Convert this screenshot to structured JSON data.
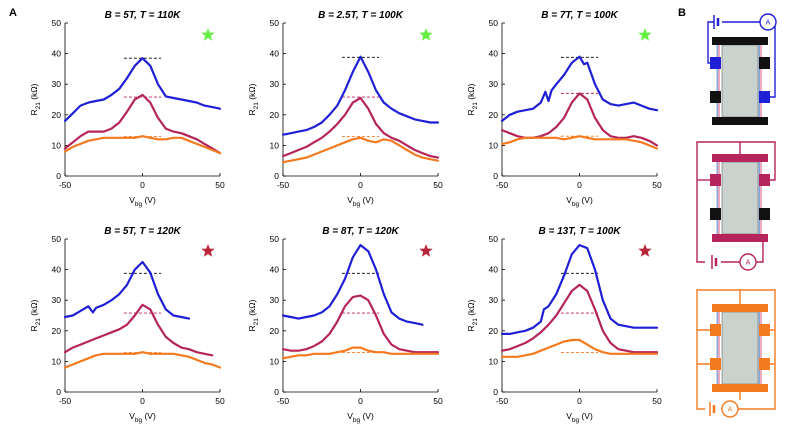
{
  "figure": {
    "panel_a_label": "A",
    "panel_b_label": "B",
    "colors": {
      "blue": "#1f1fd6",
      "magenta": "#b5245a",
      "orange": "#f47a20",
      "green_star": "#66ee44",
      "red_star": "#b8263a",
      "channel": "#c9d2cc",
      "contact_black": "#111111"
    }
  },
  "axis_text": {
    "xlabel": "V",
    "xlabel_sub": "bg",
    "xlabel_unit": " (V)",
    "ylabel": "R",
    "ylabel_sub": "21",
    "ylabel_unit": " (kΩ)"
  },
  "schematic": {
    "ammeter_label": "A",
    "circuits": [
      {
        "name": "top-config",
        "color": "#1f1fd6"
      },
      {
        "name": "middle-config",
        "color": "#b5245a"
      },
      {
        "name": "bottom-config",
        "color": "#f47a20"
      }
    ]
  },
  "chart_data": [
    {
      "type": "line",
      "title": "B = 5T, T = 110K",
      "star": "green",
      "xlim": [
        -50,
        50
      ],
      "ylim": [
        0,
        50
      ],
      "xticks": [
        -50,
        0,
        50
      ],
      "yticks": [
        0,
        10,
        20,
        30,
        40,
        50
      ],
      "series": [
        {
          "name": "blue",
          "x": [
            -50,
            -45,
            -40,
            -35,
            -30,
            -25,
            -20,
            -15,
            -10,
            -5,
            0,
            5,
            10,
            15,
            20,
            25,
            30,
            35,
            40,
            45,
            50
          ],
          "y": [
            18,
            20.5,
            23,
            24,
            24.5,
            25,
            26.5,
            28.5,
            32,
            36,
            38.5,
            36,
            30,
            26,
            25.5,
            25,
            24.5,
            24,
            23,
            22.5,
            22
          ]
        },
        {
          "name": "magenta",
          "x": [
            -50,
            -45,
            -40,
            -35,
            -30,
            -25,
            -20,
            -15,
            -10,
            -5,
            0,
            5,
            10,
            15,
            20,
            25,
            30,
            35,
            40,
            45,
            50
          ],
          "y": [
            9,
            11,
            13,
            14.5,
            14.5,
            14.5,
            15.5,
            17.5,
            21,
            25,
            26.5,
            24,
            19,
            15.5,
            14.5,
            14,
            13,
            12,
            10.5,
            9,
            7.5
          ]
        },
        {
          "name": "orange",
          "x": [
            -50,
            -45,
            -40,
            -35,
            -30,
            -25,
            -20,
            -15,
            -10,
            -5,
            0,
            5,
            10,
            15,
            20,
            25,
            30,
            35,
            40,
            45,
            50
          ],
          "y": [
            8,
            9.5,
            10.5,
            11.5,
            12,
            12.5,
            12.5,
            12.5,
            12.5,
            12.5,
            13,
            12.5,
            12,
            12,
            12.5,
            12.5,
            11.5,
            10.5,
            9.5,
            8.5,
            7.5
          ]
        }
      ],
      "dashed_refs": [
        {
          "name": "blue",
          "y": 38.5,
          "x": [
            -12,
            12
          ]
        },
        {
          "name": "magenta",
          "y": 25.8,
          "x": [
            -12,
            12
          ]
        },
        {
          "name": "orange",
          "y": 12.9,
          "x": [
            -12,
            12
          ]
        }
      ]
    },
    {
      "type": "line",
      "title": "B = 2.5T, T = 100K",
      "star": "green",
      "xlim": [
        -50,
        50
      ],
      "ylim": [
        0,
        50
      ],
      "xticks": [
        -50,
        0,
        50
      ],
      "yticks": [
        0,
        10,
        20,
        30,
        40,
        50
      ],
      "series": [
        {
          "name": "blue",
          "x": [
            -50,
            -45,
            -40,
            -35,
            -30,
            -25,
            -20,
            -15,
            -10,
            -5,
            0,
            5,
            10,
            15,
            20,
            25,
            30,
            35,
            40,
            45,
            50
          ],
          "y": [
            13.5,
            14,
            14.5,
            15,
            16,
            17.5,
            20,
            23,
            28,
            34,
            39,
            34,
            28,
            24,
            22,
            20.5,
            19.5,
            18.5,
            18,
            17.5,
            17.5
          ]
        },
        {
          "name": "magenta",
          "x": [
            -50,
            -45,
            -40,
            -35,
            -30,
            -25,
            -20,
            -15,
            -10,
            -5,
            0,
            5,
            10,
            15,
            20,
            25,
            30,
            35,
            40,
            45,
            50
          ],
          "y": [
            6.5,
            7.5,
            8.5,
            9.5,
            11,
            12.5,
            14.5,
            17,
            20,
            24,
            25.5,
            22,
            17,
            14,
            12.5,
            11.5,
            10,
            8.5,
            7.5,
            6.5,
            6
          ]
        },
        {
          "name": "orange",
          "x": [
            -50,
            -45,
            -40,
            -35,
            -30,
            -25,
            -20,
            -15,
            -10,
            -5,
            0,
            5,
            10,
            15,
            20,
            25,
            30,
            35,
            40,
            45,
            50
          ],
          "y": [
            4.5,
            5,
            5.5,
            6,
            7,
            8,
            9,
            10,
            11,
            12,
            12.5,
            11.5,
            11,
            12,
            11.5,
            10,
            8.5,
            7,
            6,
            5.5,
            5
          ]
        }
      ],
      "dashed_refs": [
        {
          "name": "blue",
          "y": 38.8,
          "x": [
            -12,
            12
          ]
        },
        {
          "name": "magenta",
          "y": 25.8,
          "x": [
            -12,
            12
          ]
        },
        {
          "name": "orange",
          "y": 12.9,
          "x": [
            -12,
            12
          ]
        }
      ]
    },
    {
      "type": "line",
      "title": "B = 7T, T = 100K",
      "star": "green",
      "xlim": [
        -50,
        50
      ],
      "ylim": [
        0,
        50
      ],
      "xticks": [
        -50,
        0,
        50
      ],
      "yticks": [
        0,
        10,
        20,
        30,
        40,
        50
      ],
      "series": [
        {
          "name": "blue",
          "x": [
            -50,
            -45,
            -40,
            -35,
            -30,
            -25,
            -22,
            -20,
            -18,
            -15,
            -10,
            -5,
            0,
            3,
            5,
            10,
            15,
            20,
            25,
            30,
            35,
            40,
            45,
            50
          ],
          "y": [
            18,
            20,
            21,
            21.5,
            22,
            24,
            27.5,
            24.5,
            28,
            30,
            33,
            37,
            39,
            36.5,
            37,
            30,
            25,
            23.5,
            23,
            23.5,
            24,
            23,
            22,
            21.5
          ]
        },
        {
          "name": "magenta",
          "x": [
            -50,
            -45,
            -40,
            -35,
            -30,
            -25,
            -20,
            -15,
            -10,
            -5,
            0,
            5,
            10,
            15,
            20,
            25,
            30,
            35,
            40,
            45,
            50
          ],
          "y": [
            15,
            14,
            13,
            12.5,
            12.5,
            13,
            14,
            16,
            19,
            24,
            27,
            25,
            19,
            15,
            13,
            12.5,
            12.5,
            13,
            12.5,
            11.5,
            10
          ]
        },
        {
          "name": "orange",
          "x": [
            -50,
            -45,
            -40,
            -35,
            -30,
            -25,
            -20,
            -15,
            -10,
            -5,
            0,
            5,
            10,
            15,
            20,
            25,
            30,
            35,
            40,
            45,
            50
          ],
          "y": [
            10.5,
            11,
            12,
            12.5,
            12.5,
            12.5,
            12.5,
            12.5,
            12,
            12.5,
            13,
            12.5,
            12,
            12,
            12,
            12,
            12,
            11.5,
            11,
            10,
            9
          ]
        }
      ],
      "dashed_refs": [
        {
          "name": "blue",
          "y": 38.8,
          "x": [
            -12,
            12
          ]
        },
        {
          "name": "magenta",
          "y": 27,
          "x": [
            -12,
            12
          ]
        },
        {
          "name": "orange",
          "y": 13,
          "x": [
            -12,
            12
          ]
        }
      ]
    },
    {
      "type": "line",
      "title": "B = 5T, T = 120K",
      "star": "red",
      "xlim": [
        -50,
        50
      ],
      "ylim": [
        0,
        50
      ],
      "xticks": [
        -50,
        0,
        50
      ],
      "yticks": [
        0,
        10,
        20,
        30,
        40,
        50
      ],
      "series": [
        {
          "name": "blue",
          "x": [
            -50,
            -45,
            -40,
            -35,
            -32,
            -30,
            -25,
            -20,
            -15,
            -10,
            -5,
            0,
            5,
            10,
            15,
            20,
            25,
            30
          ],
          "y": [
            24.5,
            25,
            26.5,
            28,
            26,
            27.5,
            28.5,
            30,
            32,
            35,
            40,
            42.5,
            39,
            32,
            27,
            25,
            24.5,
            24
          ]
        },
        {
          "name": "magenta",
          "x": [
            -50,
            -45,
            -40,
            -35,
            -30,
            -25,
            -20,
            -15,
            -10,
            -5,
            0,
            5,
            10,
            15,
            20,
            25,
            30,
            35,
            40,
            45
          ],
          "y": [
            13,
            14.5,
            15.5,
            16.5,
            17.5,
            18.5,
            19.5,
            20.5,
            22,
            25,
            28.5,
            27,
            22,
            18,
            16,
            14.5,
            14,
            13,
            12.5,
            12
          ]
        },
        {
          "name": "orange",
          "x": [
            -50,
            -45,
            -40,
            -35,
            -30,
            -25,
            -20,
            -15,
            -10,
            -5,
            0,
            5,
            10,
            15,
            20,
            25,
            30,
            35,
            40,
            45,
            50
          ],
          "y": [
            8,
            9,
            10,
            11,
            12,
            12.5,
            12.5,
            12.5,
            12.5,
            12.5,
            13,
            12.5,
            12.5,
            12.5,
            12.5,
            12,
            11.5,
            10.5,
            9.5,
            9,
            8
          ]
        }
      ],
      "dashed_refs": [
        {
          "name": "blue",
          "y": 38.8,
          "x": [
            -12,
            12
          ]
        },
        {
          "name": "magenta",
          "y": 25.8,
          "x": [
            -12,
            12
          ]
        },
        {
          "name": "orange",
          "y": 12.9,
          "x": [
            -12,
            12
          ]
        }
      ]
    },
    {
      "type": "line",
      "title": "B = 8T, T = 120K",
      "star": "red",
      "xlim": [
        -50,
        50
      ],
      "ylim": [
        0,
        50
      ],
      "xticks": [
        -50,
        0,
        50
      ],
      "yticks": [
        0,
        10,
        20,
        30,
        40,
        50
      ],
      "series": [
        {
          "name": "blue",
          "x": [
            -50,
            -45,
            -40,
            -35,
            -30,
            -25,
            -20,
            -15,
            -10,
            -5,
            0,
            5,
            10,
            15,
            20,
            25,
            30,
            35,
            40
          ],
          "y": [
            25,
            24.5,
            24,
            24.5,
            25,
            26,
            28,
            32,
            37,
            44,
            48,
            46,
            40,
            32,
            26,
            24,
            23,
            22.5,
            22
          ]
        },
        {
          "name": "magenta",
          "x": [
            -50,
            -45,
            -40,
            -35,
            -30,
            -25,
            -20,
            -15,
            -10,
            -5,
            0,
            5,
            10,
            15,
            20,
            25,
            30,
            35,
            40,
            45,
            50
          ],
          "y": [
            14,
            13.5,
            13.5,
            14,
            15,
            16.5,
            19,
            23,
            28,
            31,
            31.5,
            30,
            25,
            19,
            15.5,
            14,
            13.5,
            13,
            13,
            13,
            13
          ]
        },
        {
          "name": "orange",
          "x": [
            -50,
            -45,
            -40,
            -35,
            -30,
            -25,
            -20,
            -15,
            -10,
            -5,
            0,
            5,
            10,
            15,
            20,
            25,
            30,
            35,
            40,
            45,
            50
          ],
          "y": [
            11,
            11.5,
            12,
            12,
            12.5,
            12.5,
            12.5,
            13,
            13.5,
            14.5,
            14.5,
            13.5,
            13,
            13,
            12.5,
            12.5,
            12.5,
            12.5,
            12.5,
            12.5,
            12.5
          ]
        }
      ],
      "dashed_refs": [
        {
          "name": "blue",
          "y": 38.8,
          "x": [
            -12,
            12
          ]
        },
        {
          "name": "magenta",
          "y": 25.8,
          "x": [
            -12,
            12
          ]
        },
        {
          "name": "orange",
          "y": 12.9,
          "x": [
            -12,
            12
          ]
        }
      ]
    },
    {
      "type": "line",
      "title": "B = 13T, T = 100K",
      "star": "red",
      "xlim": [
        -50,
        50
      ],
      "ylim": [
        0,
        50
      ],
      "xticks": [
        -50,
        0,
        50
      ],
      "yticks": [
        0,
        10,
        20,
        30,
        40,
        50
      ],
      "series": [
        {
          "name": "blue",
          "x": [
            -50,
            -45,
            -40,
            -35,
            -30,
            -25,
            -23,
            -20,
            -15,
            -10,
            -5,
            0,
            5,
            10,
            15,
            20,
            25,
            30,
            35,
            40,
            45,
            50
          ],
          "y": [
            19,
            19,
            19.5,
            20,
            21,
            23,
            27,
            28,
            32,
            38,
            45,
            48,
            47,
            40,
            30,
            24,
            22,
            21.5,
            21,
            21,
            21,
            21
          ]
        },
        {
          "name": "magenta",
          "x": [
            -50,
            -45,
            -40,
            -35,
            -30,
            -25,
            -20,
            -15,
            -10,
            -5,
            0,
            5,
            10,
            15,
            20,
            25,
            30,
            35,
            40,
            45,
            50
          ],
          "y": [
            13.5,
            14,
            15,
            16,
            17.5,
            19.5,
            22,
            25,
            29,
            33,
            35,
            33,
            27,
            20,
            16,
            14,
            13.5,
            13,
            13,
            13,
            13
          ]
        },
        {
          "name": "orange",
          "x": [
            -50,
            -45,
            -40,
            -35,
            -30,
            -25,
            -20,
            -15,
            -10,
            -5,
            0,
            5,
            10,
            15,
            20,
            25,
            30,
            35,
            40,
            45,
            50
          ],
          "y": [
            11.5,
            11.5,
            11.5,
            12,
            12.5,
            13.5,
            14.5,
            15.5,
            16.5,
            17,
            17,
            15.5,
            14,
            13,
            12.5,
            12.5,
            12.5,
            12.5,
            12.5,
            12.5,
            12.5
          ]
        }
      ],
      "dashed_refs": [
        {
          "name": "blue",
          "y": 38.8,
          "x": [
            -12,
            12
          ]
        },
        {
          "name": "magenta",
          "y": 25.8,
          "x": [
            -12,
            12
          ]
        },
        {
          "name": "orange",
          "y": 12.9,
          "x": [
            -12,
            12
          ]
        }
      ]
    }
  ]
}
